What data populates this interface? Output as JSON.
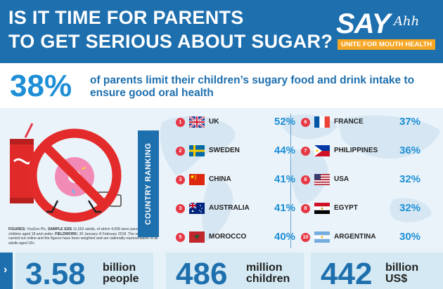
{
  "header": {
    "title_line1": "IS IT TIME FOR PARENTS",
    "title_line2": "TO GET SERIOUS ABOUT SUGAR?",
    "logo": {
      "say": "SAY",
      "ahh": "Ahh",
      "tagline": "UNITE FOR MOUTH HEALTH"
    }
  },
  "headline_stat": {
    "value": "38%",
    "text": "of parents limit their children’s sugary food and drink intake to ensure good oral health"
  },
  "ranking": {
    "label": "COUNTRY RANKING",
    "left": [
      {
        "rank": "1",
        "country": "UK",
        "percent": "52%",
        "flag": "uk-flag-icon"
      },
      {
        "rank": "2",
        "country": "SWEDEN",
        "percent": "44%",
        "flag": "sweden-flag-icon"
      },
      {
        "rank": "3",
        "country": "CHINA",
        "percent": "41%",
        "flag": "china-flag-icon"
      },
      {
        "rank": "3",
        "country": "AUSTRALIA",
        "percent": "41%",
        "flag": "australia-flag-icon"
      },
      {
        "rank": "5",
        "country": "MOROCCO",
        "percent": "40%",
        "flag": "morocco-flag-icon"
      }
    ],
    "right": [
      {
        "rank": "6",
        "country": "FRANCE",
        "percent": "37%",
        "flag": "france-flag-icon"
      },
      {
        "rank": "7",
        "country": "PHILIPPINES",
        "percent": "36%",
        "flag": "philippines-flag-icon"
      },
      {
        "rank": "8",
        "country": "USA",
        "percent": "32%",
        "flag": "usa-flag-icon"
      },
      {
        "rank": "8",
        "country": "EGYPT",
        "percent": "32%",
        "flag": "egypt-flag-icon"
      },
      {
        "rank": "10",
        "country": "ARGENTINA",
        "percent": "30%",
        "flag": "argentina-flag-icon"
      }
    ]
  },
  "figures": {
    "label": "FIGURES:",
    "source": " YouGov Plc, ",
    "sample_label": "SAMPLE SIZE",
    "sample_text": " 11,552 adults, of which 4,056 were parents with children aged 18 and under; ",
    "fieldwork_label": "FIELDWORK:",
    "fieldwork_text": " 30 January–8 February 2018. The survey was carried out online and the figures have been weighted and are nationally representative of all adults aged 18+."
  },
  "bottom_stats": [
    {
      "value": "3.58",
      "unit_line1": "billion",
      "unit_line2": "people"
    },
    {
      "value": "486",
      "unit_line1": "million",
      "unit_line2": "children"
    },
    {
      "value": "442",
      "unit_line1": "billion",
      "unit_line2": "US$"
    }
  ],
  "bottom_chevron": "›",
  "colors": {
    "brand_blue": "#1e6fae",
    "accent_blue": "#1e8fd6",
    "rank_red": "#e63946",
    "logo_orange": "#f6a623"
  }
}
